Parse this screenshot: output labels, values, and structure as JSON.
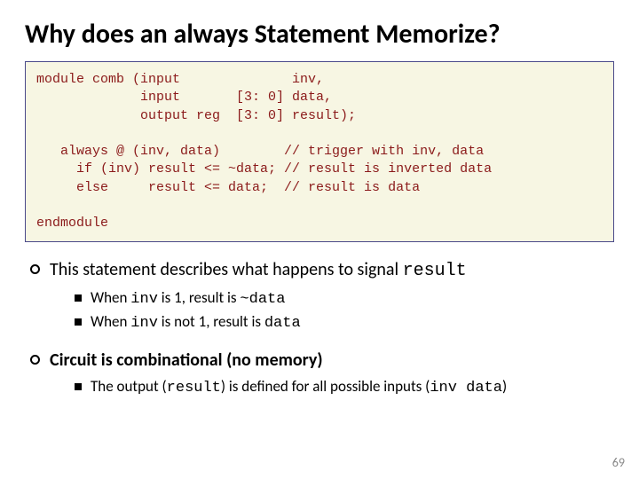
{
  "title": "Why does an always Statement Memorize?",
  "code": {
    "l1": "module comb (input              inv,",
    "l2": "             input       [3: 0] data,",
    "l3": "             output reg  [3: 0] result);",
    "l4": "",
    "l5": "   always @ (inv, data)        // trigger with inv, data",
    "l6": "     if (inv) result <= ~data; // result is inverted data",
    "l7": "     else     result <= data;  // result is data",
    "l8": "",
    "l9": "endmodule"
  },
  "bullets": {
    "b1_prefix": "This statement describes what happens to signal ",
    "b1_signal": "result",
    "b1s1_a": "When ",
    "b1s1_b": "inv",
    "b1s1_c": " is 1, result is ",
    "b1s1_d": "~data",
    "b1s2_a": "When ",
    "b1s2_b": "inv",
    "b1s2_c": " is not 1, result is ",
    "b1s2_d": "data",
    "b2": "Circuit is combinational (no memory)",
    "b2s1_a": "The output (",
    "b2s1_b": "result",
    "b2s1_c": ") is defined for all possible inputs (",
    "b2s1_d": "inv  data",
    "b2s1_e": ")"
  },
  "pagenum": "69",
  "colors": {
    "codebox_bg": "#f7f6e3",
    "codebox_border": "#4a4a8a",
    "code_text": "#8b1a1a",
    "pagenum": "#888888"
  }
}
